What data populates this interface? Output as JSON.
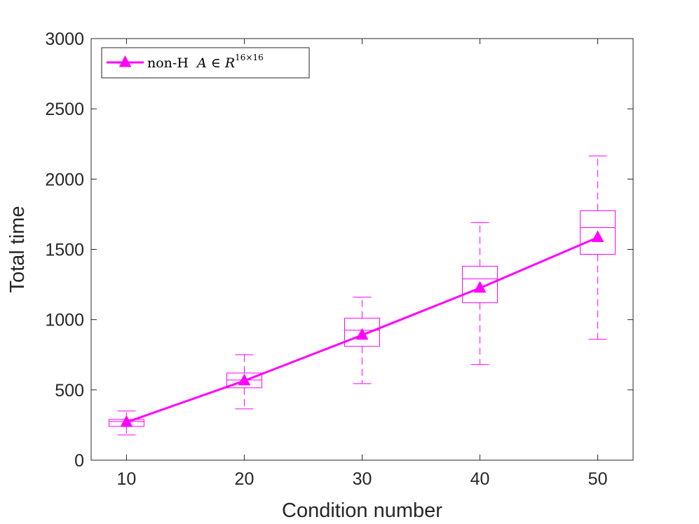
{
  "chart_data": {
    "type": "line",
    "title": "",
    "xlabel": "Condition number",
    "ylabel": "Total time",
    "xlim": [
      7,
      53
    ],
    "ylim": [
      0,
      3000
    ],
    "xticks": [
      10,
      20,
      30,
      40,
      50
    ],
    "yticks": [
      0,
      500,
      1000,
      1500,
      2000,
      2500,
      3000
    ],
    "grid": false,
    "color": "#ff00ff",
    "series": [
      {
        "name": "non-H A ∈ R^(16×16)",
        "legend": {
          "prefix": "non-H ",
          "matrix": "A",
          "relation": " ∈ ",
          "space": "R",
          "superscript": "16×16"
        },
        "x": [
          10,
          20,
          30,
          40,
          50
        ],
        "y": [
          270,
          565,
          890,
          1225,
          1585
        ],
        "marker": "triangle"
      }
    ],
    "boxplots": [
      {
        "x": 10,
        "whisker_low": 180,
        "q1": 240,
        "median": 275,
        "q3": 290,
        "whisker_high": 350
      },
      {
        "x": 20,
        "whisker_low": 365,
        "q1": 515,
        "median": 570,
        "q3": 620,
        "whisker_high": 750
      },
      {
        "x": 30,
        "whisker_low": 545,
        "q1": 810,
        "median": 925,
        "q3": 1010,
        "whisker_high": 1160
      },
      {
        "x": 40,
        "whisker_low": 680,
        "q1": 1120,
        "median": 1290,
        "q3": 1380,
        "whisker_high": 1690
      },
      {
        "x": 50,
        "whisker_low": 860,
        "q1": 1465,
        "median": 1655,
        "q3": 1775,
        "whisker_high": 2165
      }
    ],
    "legend_position": "top-left"
  }
}
